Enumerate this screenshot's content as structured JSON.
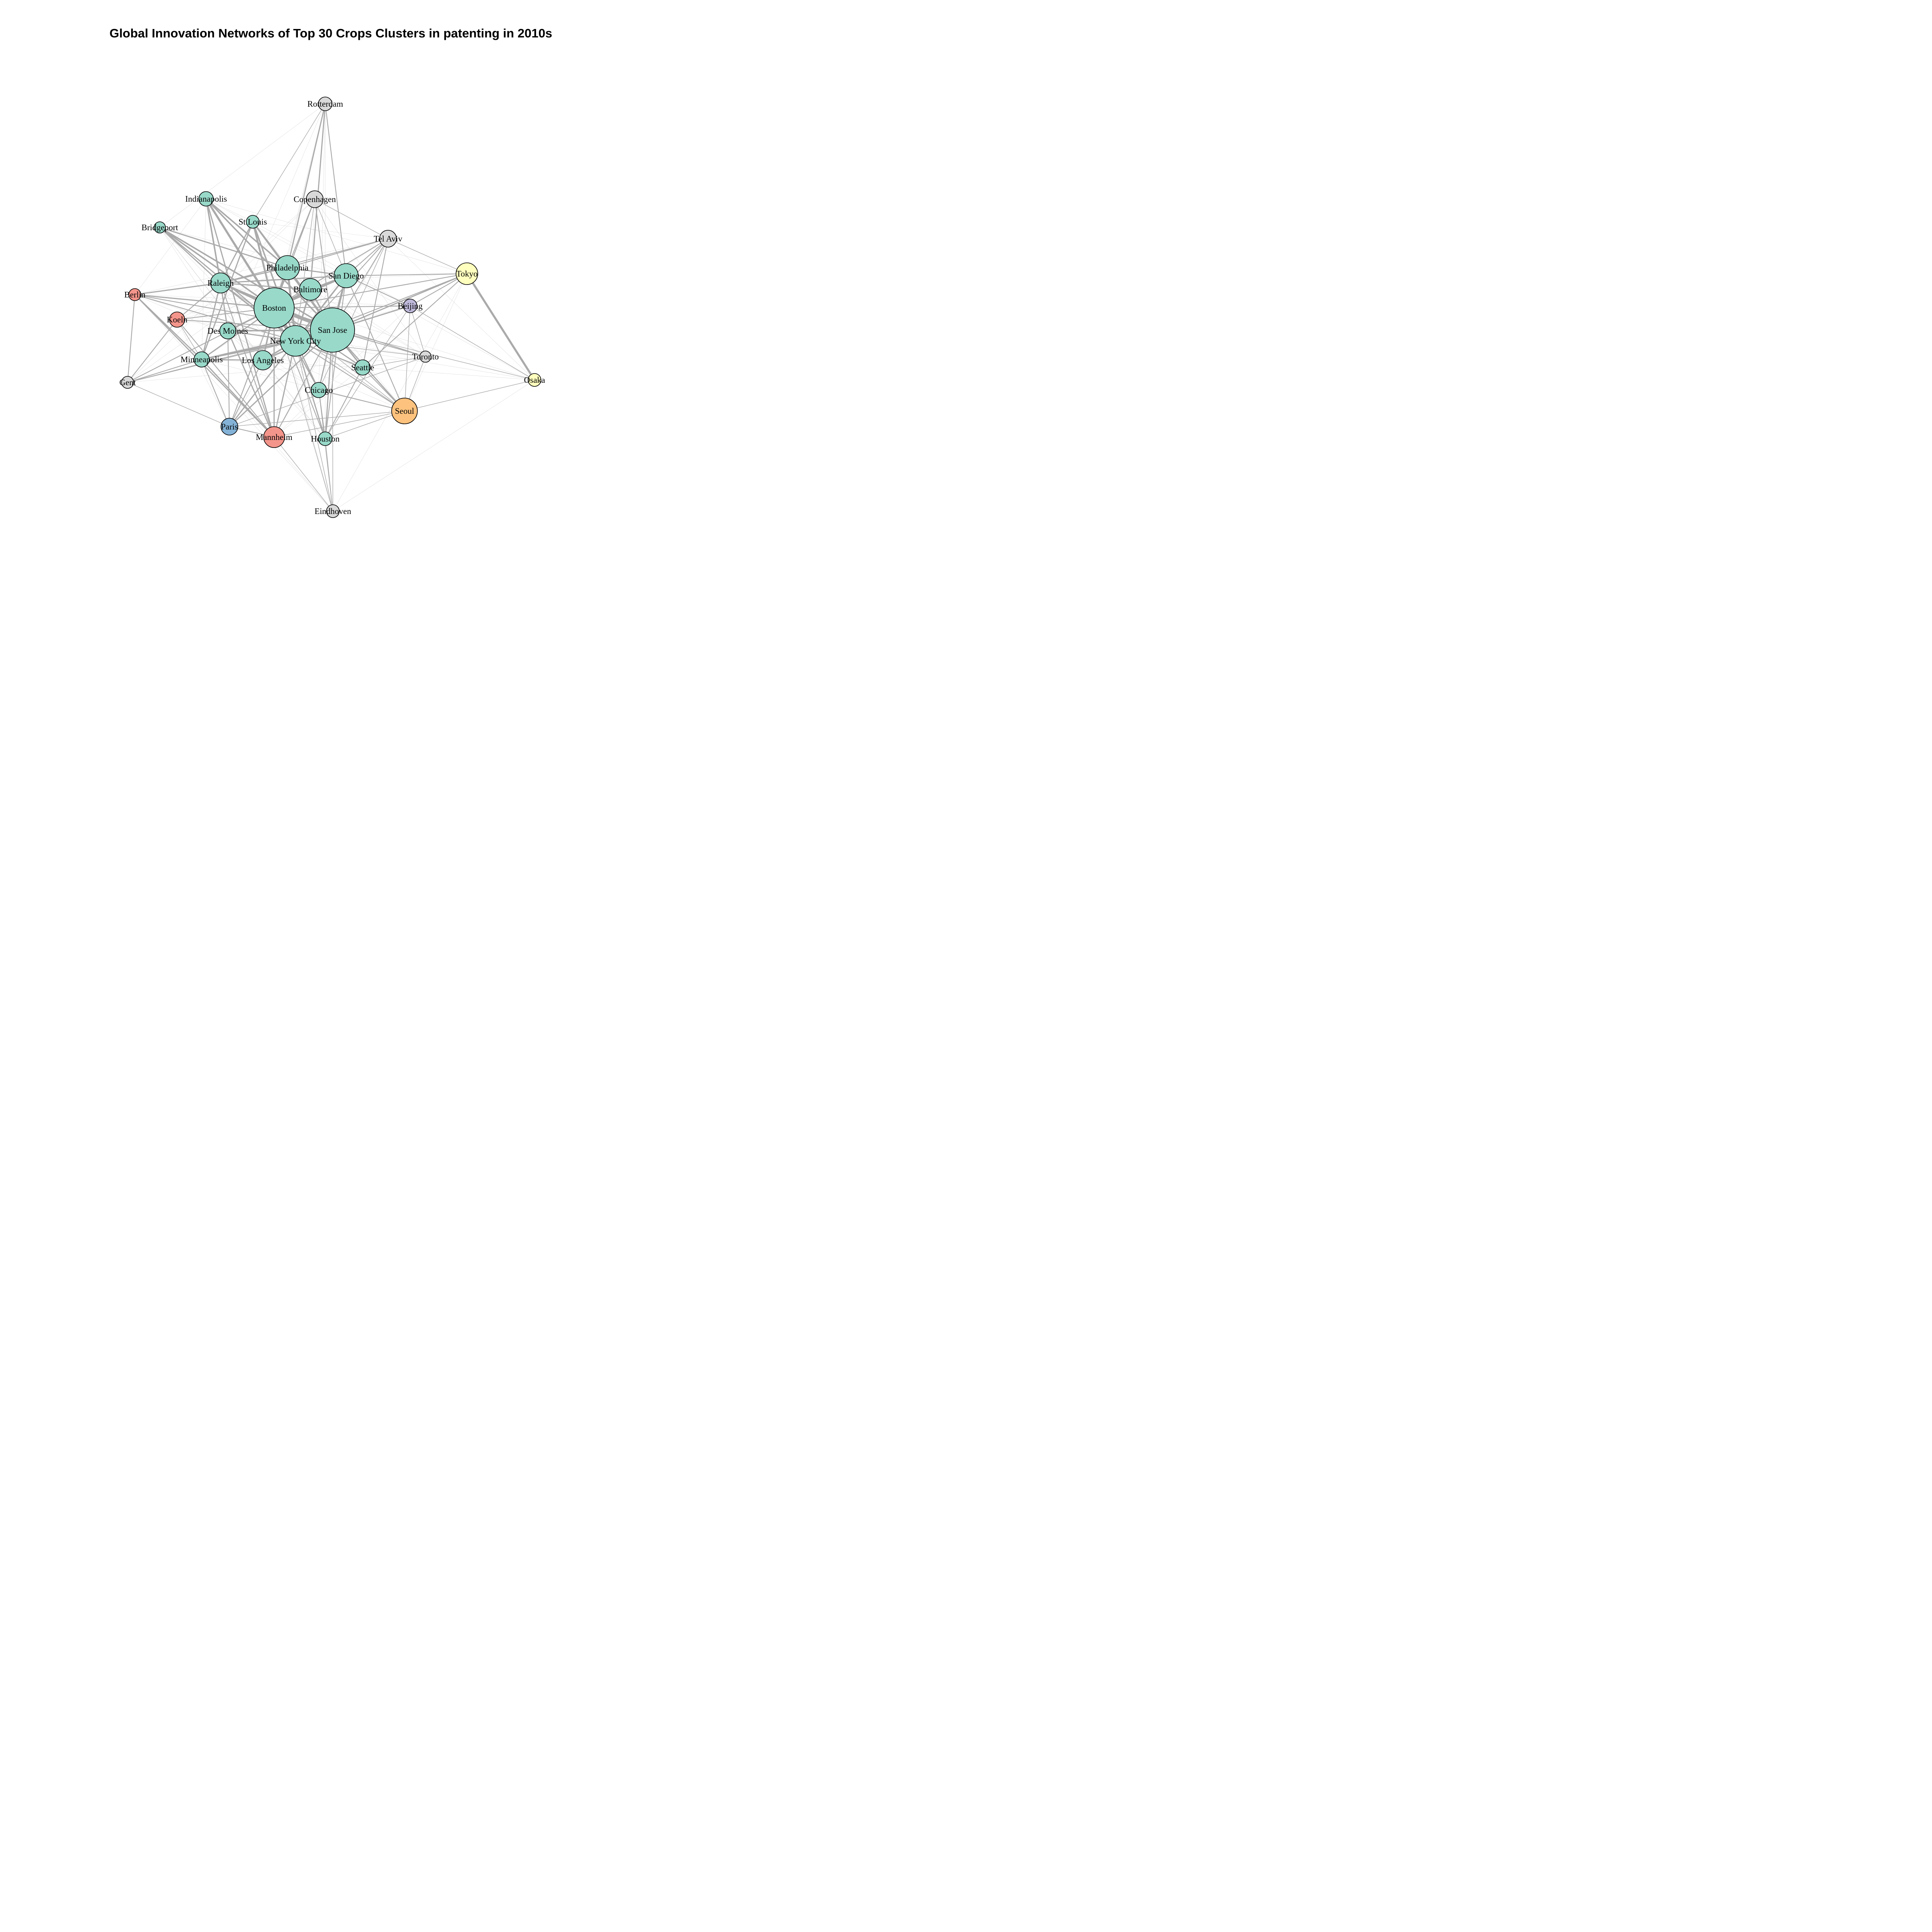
{
  "title": "Global Innovation Networks of Top 30 Crops Clusters in patenting in 2010s",
  "colors": {
    "edge": "#aaaaaa",
    "edge_light": "#d6d6d6",
    "groups": {
      "us": "#98d9c9",
      "germany": "#f4958b",
      "other": "#d9d9d9",
      "japan": "#ffffbe",
      "korea": "#fdc27d",
      "china": "#beb8d9",
      "france": "#83b2d6"
    }
  },
  "nodes": [
    {
      "id": "rotterdam",
      "label": "Rotterdam",
      "group": "other",
      "weight": 1
    },
    {
      "id": "indianapolis",
      "label": "Indianapolis",
      "group": "us",
      "weight": 1
    },
    {
      "id": "copenhagen",
      "label": "Copenhagen",
      "group": "other",
      "weight": 2
    },
    {
      "id": "stlouis",
      "label": "St.Louis",
      "group": "us",
      "weight": 1
    },
    {
      "id": "bridgeport",
      "label": "Bridgeport",
      "group": "us",
      "weight": 1
    },
    {
      "id": "telaviv",
      "label": "Tel Aviv",
      "group": "other",
      "weight": 2
    },
    {
      "id": "philadelphia",
      "label": "Philadelphia",
      "group": "us",
      "weight": 4
    },
    {
      "id": "tokyo",
      "label": "Tokyo",
      "group": "japan",
      "weight": 3
    },
    {
      "id": "sandiego",
      "label": "San Diego",
      "group": "us",
      "weight": 4
    },
    {
      "id": "raleigh",
      "label": "Raleigh",
      "group": "us",
      "weight": 3
    },
    {
      "id": "baltimore",
      "label": "Baltimore",
      "group": "us",
      "weight": 3
    },
    {
      "id": "berlin",
      "label": "Berlin",
      "group": "germany",
      "weight": 1
    },
    {
      "id": "boston",
      "label": "Boston",
      "group": "us",
      "weight": 9
    },
    {
      "id": "beijing",
      "label": "Beijing",
      "group": "china",
      "weight": 1
    },
    {
      "id": "koeln",
      "label": "Koeln",
      "group": "germany",
      "weight": 2
    },
    {
      "id": "sanjose",
      "label": "San Jose",
      "group": "us",
      "weight": 10
    },
    {
      "id": "desmoines",
      "label": "Des Moines",
      "group": "us",
      "weight": 2
    },
    {
      "id": "newyork",
      "label": "New York City",
      "group": "us",
      "weight": 6
    },
    {
      "id": "toronto",
      "label": "Toronto",
      "group": "other",
      "weight": 1
    },
    {
      "id": "minneapolis",
      "label": "Minneapolis",
      "group": "us",
      "weight": 2
    },
    {
      "id": "losangeles",
      "label": "Los Angeles",
      "group": "us",
      "weight": 3
    },
    {
      "id": "seattle",
      "label": "Seattle",
      "group": "us",
      "weight": 2
    },
    {
      "id": "gent",
      "label": "Gent",
      "group": "other",
      "weight": 1
    },
    {
      "id": "osaka",
      "label": "Osaka",
      "group": "japan",
      "weight": 1
    },
    {
      "id": "chicago",
      "label": "Chicago",
      "group": "us",
      "weight": 2
    },
    {
      "id": "seoul",
      "label": "Seoul",
      "group": "korea",
      "weight": 4
    },
    {
      "id": "paris",
      "label": "Paris",
      "group": "france",
      "weight": 2
    },
    {
      "id": "mannheim",
      "label": "Mannheim",
      "group": "germany",
      "weight": 3
    },
    {
      "id": "houston",
      "label": "Houston",
      "group": "us",
      "weight": 1
    },
    {
      "id": "eindhoven",
      "label": "Eindhoven",
      "group": "other",
      "weight": 1
    }
  ],
  "edges": [
    [
      "boston",
      "sanjose",
      10
    ],
    [
      "boston",
      "newyork",
      9
    ],
    [
      "sanjose",
      "newyork",
      9
    ],
    [
      "boston",
      "philadelphia",
      7
    ],
    [
      "boston",
      "sandiego",
      6
    ],
    [
      "boston",
      "baltimore",
      6
    ],
    [
      "sanjose",
      "sandiego",
      6
    ],
    [
      "sanjose",
      "philadelphia",
      6
    ],
    [
      "newyork",
      "philadelphia",
      6
    ],
    [
      "boston",
      "raleigh",
      5
    ],
    [
      "sanjose",
      "raleigh",
      5
    ],
    [
      "newyork",
      "raleigh",
      4
    ],
    [
      "tokyo",
      "osaka",
      6
    ],
    [
      "indianapolis",
      "newyork",
      6
    ],
    [
      "indianapolis",
      "boston",
      5
    ],
    [
      "indianapolis",
      "philadelphia",
      4
    ],
    [
      "indianapolis",
      "sanjose",
      4
    ],
    [
      "indianapolis",
      "raleigh",
      4
    ],
    [
      "stlouis",
      "boston",
      5
    ],
    [
      "stlouis",
      "sanjose",
      5
    ],
    [
      "stlouis",
      "newyork",
      4
    ],
    [
      "stlouis",
      "philadelphia",
      4
    ],
    [
      "stlouis",
      "raleigh",
      3
    ],
    [
      "stlouis",
      "minneapolis",
      3
    ],
    [
      "bridgeport",
      "boston",
      4
    ],
    [
      "bridgeport",
      "sanjose",
      4
    ],
    [
      "bridgeport",
      "philadelphia",
      3
    ],
    [
      "bridgeport",
      "raleigh",
      3
    ],
    [
      "bridgeport",
      "newyork",
      3
    ],
    [
      "rotterdam",
      "philadelphia",
      3
    ],
    [
      "rotterdam",
      "baltimore",
      3
    ],
    [
      "rotterdam",
      "sandiego",
      2
    ],
    [
      "rotterdam",
      "stlouis",
      1
    ],
    [
      "copenhagen",
      "philadelphia",
      2
    ],
    [
      "copenhagen",
      "boston",
      2
    ],
    [
      "copenhagen",
      "sanjose",
      2
    ],
    [
      "copenhagen",
      "telaviv",
      1
    ],
    [
      "telaviv",
      "boston",
      2
    ],
    [
      "telaviv",
      "sanjose",
      2
    ],
    [
      "telaviv",
      "newyork",
      2
    ],
    [
      "telaviv",
      "seattle",
      2
    ],
    [
      "telaviv",
      "tokyo",
      1
    ],
    [
      "telaviv",
      "chicago",
      1
    ],
    [
      "tokyo",
      "sanjose",
      3
    ],
    [
      "tokyo",
      "boston",
      2
    ],
    [
      "tokyo",
      "newyork",
      2
    ],
    [
      "tokyo",
      "sandiego",
      2
    ],
    [
      "tokyo",
      "seattle",
      2
    ],
    [
      "tokyo",
      "beijing",
      2
    ],
    [
      "berlin",
      "boston",
      3
    ],
    [
      "berlin",
      "raleigh",
      3
    ],
    [
      "berlin",
      "sanjose",
      2
    ],
    [
      "berlin",
      "newyork",
      2
    ],
    [
      "berlin",
      "minneapolis",
      3
    ],
    [
      "berlin",
      "gent",
      2
    ],
    [
      "berlin",
      "mannheim",
      3
    ],
    [
      "koeln",
      "boston",
      2
    ],
    [
      "koeln",
      "sanjose",
      2
    ],
    [
      "koeln",
      "raleigh",
      2
    ],
    [
      "koeln",
      "gent",
      2
    ],
    [
      "koeln",
      "mannheim",
      2
    ],
    [
      "koeln",
      "minneapolis",
      1
    ],
    [
      "desmoines",
      "boston",
      4
    ],
    [
      "desmoines",
      "sanjose",
      4
    ],
    [
      "desmoines",
      "newyork",
      3
    ],
    [
      "desmoines",
      "raleigh",
      3
    ],
    [
      "desmoines",
      "paris",
      2
    ],
    [
      "desmoines",
      "mannheim",
      3
    ],
    [
      "minneapolis",
      "newyork",
      4
    ],
    [
      "minneapolis",
      "sanjose",
      4
    ],
    [
      "minneapolis",
      "boston",
      3
    ],
    [
      "minneapolis",
      "raleigh",
      3
    ],
    [
      "minneapolis",
      "paris",
      2
    ],
    [
      "minneapolis",
      "mannheim",
      3
    ],
    [
      "minneapolis",
      "losangeles",
      3
    ],
    [
      "minneapolis",
      "gent",
      2
    ],
    [
      "losangeles",
      "newyork",
      4
    ],
    [
      "losangeles",
      "sanjose",
      4
    ],
    [
      "losangeles",
      "boston",
      4
    ],
    [
      "losangeles",
      "paris",
      2
    ],
    [
      "seattle",
      "sanjose",
      4
    ],
    [
      "seattle",
      "newyork",
      3
    ],
    [
      "seattle",
      "boston",
      3
    ],
    [
      "seattle",
      "seoul",
      2
    ],
    [
      "seattle",
      "houston",
      2
    ],
    [
      "chicago",
      "sanjose",
      3
    ],
    [
      "chicago",
      "newyork",
      3
    ],
    [
      "chicago",
      "boston",
      3
    ],
    [
      "chicago",
      "seoul",
      2
    ],
    [
      "chicago",
      "houston",
      2
    ],
    [
      "houston",
      "sanjose",
      3
    ],
    [
      "houston",
      "newyork",
      3
    ],
    [
      "houston",
      "boston",
      2
    ],
    [
      "houston",
      "sandiego",
      2
    ],
    [
      "houston",
      "seoul",
      1
    ],
    [
      "seoul",
      "sanjose",
      3
    ],
    [
      "seoul",
      "newyork",
      2
    ],
    [
      "seoul",
      "sandiego",
      2
    ],
    [
      "seoul",
      "osaka",
      1
    ],
    [
      "seoul",
      "paris",
      1
    ],
    [
      "seoul",
      "mannheim",
      1
    ],
    [
      "seoul",
      "beijing",
      1
    ],
    [
      "paris",
      "newyork",
      3
    ],
    [
      "paris",
      "sanjose",
      3
    ],
    [
      "paris",
      "boston",
      2
    ],
    [
      "paris",
      "gent",
      1
    ],
    [
      "paris",
      "mannheim",
      2
    ],
    [
      "mannheim",
      "newyork",
      3
    ],
    [
      "mannheim",
      "boston",
      3
    ],
    [
      "mannheim",
      "sanjose",
      2
    ],
    [
      "mannheim",
      "raleigh",
      2
    ],
    [
      "mannheim",
      "indianapolis",
      3
    ],
    [
      "beijing",
      "sanjose",
      3
    ],
    [
      "beijing",
      "boston",
      2
    ],
    [
      "beijing",
      "sandiego",
      2
    ],
    [
      "beijing",
      "newyork",
      2
    ],
    [
      "toronto",
      "sanjose",
      2
    ],
    [
      "toronto",
      "boston",
      2
    ],
    [
      "toronto",
      "newyork",
      1
    ],
    [
      "toronto",
      "seoul",
      1
    ],
    [
      "gent",
      "newyork",
      2
    ],
    [
      "gent",
      "boston",
      2
    ],
    [
      "gent",
      "sanjose",
      1
    ],
    [
      "baltimore",
      "sanjose",
      4
    ],
    [
      "baltimore",
      "newyork",
      4
    ],
    [
      "baltimore",
      "raleigh",
      3
    ],
    [
      "baltimore",
      "sandiego",
      3
    ],
    [
      "philadelphia",
      "sandiego",
      3
    ],
    [
      "philadelphia",
      "raleigh",
      3
    ],
    [
      "sandiego",
      "newyork",
      4
    ],
    [
      "sandiego",
      "raleigh",
      3
    ],
    [
      "eindhoven",
      "newyork",
      1
    ],
    [
      "eindhoven",
      "sanjose",
      1
    ],
    [
      "eindhoven",
      "boston",
      1
    ],
    [
      "eindhoven",
      "chicago",
      1
    ],
    [
      "eindhoven",
      "houston",
      1
    ],
    [
      "eindhoven",
      "mannheim",
      1
    ],
    [
      "telaviv",
      "sandiego",
      2
    ],
    [
      "telaviv",
      "raleigh",
      2
    ],
    [
      "telaviv",
      "philadelphia",
      2
    ],
    [
      "copenhagen",
      "newyork",
      1
    ],
    [
      "copenhagen",
      "sandiego",
      1
    ],
    [
      "seoul",
      "boston",
      1
    ],
    [
      "seoul",
      "raleigh",
      1
    ],
    [
      "osaka",
      "sanjose",
      1
    ],
    [
      "osaka",
      "beijing",
      1
    ],
    [
      "beijing",
      "houston",
      1
    ],
    [
      "toronto",
      "beijing",
      1
    ],
    [
      "toronto",
      "paris",
      1
    ],
    [
      "toronto",
      "seattle",
      1
    ]
  ]
}
